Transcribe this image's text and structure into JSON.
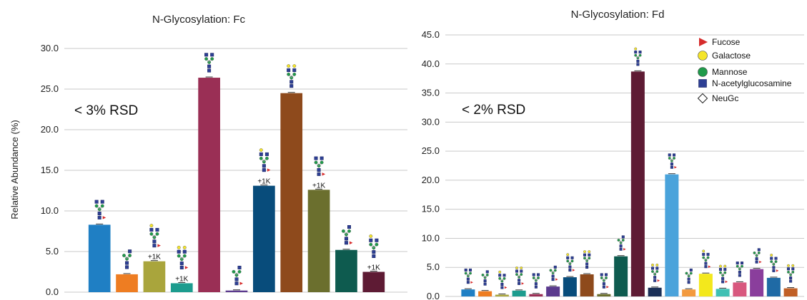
{
  "chart_data": [
    {
      "type": "bar",
      "title": "N-Glycosylation: Fc",
      "xlabel": "",
      "ylabel": "Relative Abundance (%)",
      "ylim": [
        0,
        30
      ],
      "yticks": [
        "0.0",
        "5.0",
        "10.0",
        "15.0",
        "20.0",
        "25.0",
        "30.0"
      ],
      "grid": true,
      "annotation": "< 3% RSD",
      "bars": [
        {
          "value": 8.3,
          "color": "#1f7fc4",
          "note": ""
        },
        {
          "value": 2.2,
          "color": "#ee7d22",
          "note": ""
        },
        {
          "value": 3.8,
          "color": "#a9a53c",
          "note": "+1K"
        },
        {
          "value": 1.1,
          "color": "#1c9c8e",
          "note": "+1K"
        },
        {
          "value": 26.4,
          "color": "#9a2f55",
          "note": ""
        },
        {
          "value": 0.2,
          "color": "#5b3a8e",
          "note": ""
        },
        {
          "value": 13.1,
          "color": "#084c7b",
          "note": "+1K"
        },
        {
          "value": 24.5,
          "color": "#8e4a1c",
          "note": ""
        },
        {
          "value": 12.6,
          "color": "#6b6f2e",
          "note": "+1K"
        },
        {
          "value": 5.2,
          "color": "#0e5b4f",
          "note": ""
        },
        {
          "value": 2.5,
          "color": "#5e1b34",
          "note": "+1K"
        }
      ]
    },
    {
      "type": "bar",
      "title": "N-Glycosylation: Fd",
      "xlabel": "",
      "ylabel": "",
      "ylim": [
        0,
        45
      ],
      "yticks": [
        "0.0",
        "5.0",
        "10.0",
        "15.0",
        "20.0",
        "25.0",
        "30.0",
        "35.0",
        "40.0",
        "45.0"
      ],
      "grid": true,
      "annotation": "< 2% RSD",
      "legend_position": "top-right",
      "legend": [
        {
          "label": "Fucose",
          "shape": "triangle",
          "color": "#d62c2c"
        },
        {
          "label": "Galactose",
          "shape": "circle",
          "color": "#f5e52a"
        },
        {
          "label": "Mannose",
          "shape": "circle",
          "color": "#1f9a4a"
        },
        {
          "label": "N-acetylglucosamine",
          "shape": "square",
          "color": "#2d3f94"
        },
        {
          "label": "NeuGc",
          "shape": "diamond",
          "color": "#ffffff"
        }
      ],
      "bars": [
        {
          "value": 1.2,
          "color": "#1f7fc4"
        },
        {
          "value": 0.9,
          "color": "#ee7d22"
        },
        {
          "value": 0.3,
          "color": "#a9a53c"
        },
        {
          "value": 1.0,
          "color": "#1c9c8e"
        },
        {
          "value": 0.4,
          "color": "#9a2f55"
        },
        {
          "value": 1.7,
          "color": "#5b3a8e"
        },
        {
          "value": 3.3,
          "color": "#084c7b"
        },
        {
          "value": 3.8,
          "color": "#8e4a1c"
        },
        {
          "value": 0.4,
          "color": "#6b6f2e"
        },
        {
          "value": 6.9,
          "color": "#0e5b4f"
        },
        {
          "value": 38.7,
          "color": "#5e1b34"
        },
        {
          "value": 1.5,
          "color": "#1b2f57"
        },
        {
          "value": 21.0,
          "color": "#4aa3db"
        },
        {
          "value": 1.2,
          "color": "#f39a3e"
        },
        {
          "value": 3.9,
          "color": "#f3e81c"
        },
        {
          "value": 1.3,
          "color": "#3fc0b4"
        },
        {
          "value": 2.4,
          "color": "#d8587e"
        },
        {
          "value": 4.7,
          "color": "#8a3e9c"
        },
        {
          "value": 3.2,
          "color": "#1f6aa5"
        },
        {
          "value": 1.4,
          "color": "#c05f26"
        }
      ]
    }
  ]
}
